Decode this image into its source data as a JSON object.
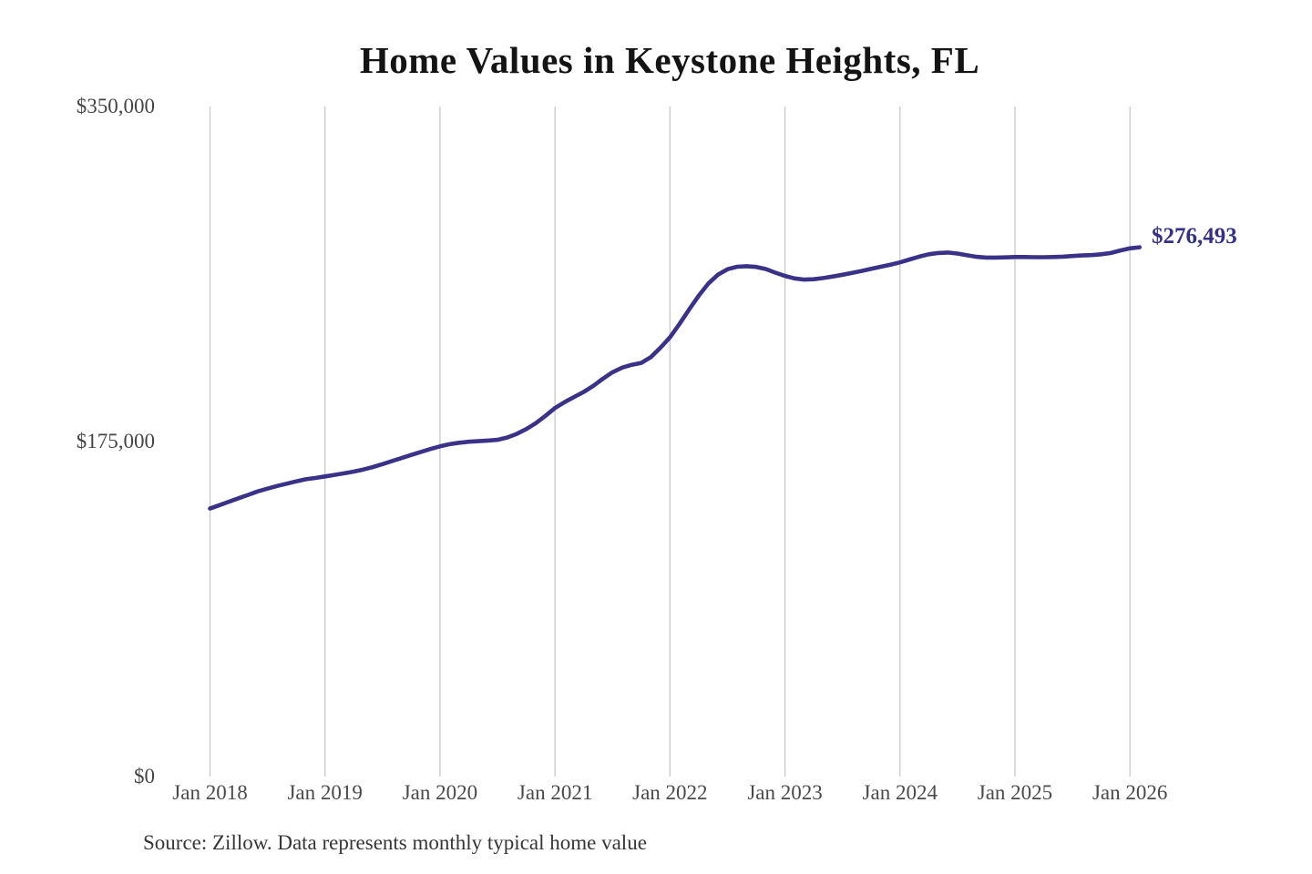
{
  "title": "Home Values in Keystone Heights, FL",
  "annotation": {
    "current_value": "$276,493"
  },
  "footer": {
    "source_note": "Source: Zillow. Data represents monthly typical home value"
  },
  "colors": {
    "line": "#3a3288",
    "accent_label": "#343086",
    "gridline": "#c9c9c9",
    "axis_text": "#4a4a4a",
    "title_text": "#141414"
  },
  "axes": {
    "y_ticks": [
      {
        "label": "$350,000",
        "value": 350000
      },
      {
        "label": "$175,000",
        "value": 175000
      },
      {
        "label": "$0",
        "value": 0
      }
    ],
    "x_tick_labels": [
      "Jan 2018",
      "Jan 2019",
      "Jan 2020",
      "Jan 2021",
      "Jan 2022",
      "Jan 2023",
      "Jan 2024",
      "Jan 2025",
      "Jan 2026"
    ]
  },
  "chart_data": {
    "type": "line",
    "title": "Home Values in Keystone Heights, FL",
    "xlabel": "",
    "ylabel": "",
    "ylim": [
      0,
      350000
    ],
    "y_tick_labels": [
      "$0",
      "$175,000",
      "$350,000"
    ],
    "x_tick_labels": [
      "Jan 2018",
      "Jan 2019",
      "Jan 2020",
      "Jan 2021",
      "Jan 2022",
      "Jan 2023",
      "Jan 2024",
      "Jan 2025",
      "Jan 2026"
    ],
    "grid": "vertical-only",
    "legend": "none",
    "unit": "USD",
    "frequency": "monthly",
    "x_start": "2018-01",
    "x_end": "2026-02",
    "last_point_value": 276493,
    "last_point_label": "$276,493",
    "series": [
      {
        "name": "Typical home value",
        "values": [
          140000,
          141800,
          143600,
          145400,
          147200,
          149000,
          150400,
          151800,
          153000,
          154200,
          155300,
          156000,
          156800,
          157600,
          158400,
          159300,
          160400,
          161700,
          163200,
          164800,
          166400,
          168000,
          169600,
          171100,
          172500,
          173600,
          174400,
          174900,
          175200,
          175500,
          175900,
          177100,
          179000,
          181500,
          184600,
          188400,
          192500,
          195600,
          198300,
          200900,
          204100,
          207800,
          211200,
          213600,
          215100,
          216100,
          219100,
          224000,
          229500,
          236500,
          244000,
          251200,
          257500,
          262100,
          265000,
          266300,
          266600,
          266200,
          265100,
          263200,
          261500,
          260200,
          259600,
          259800,
          260400,
          261200,
          262100,
          263100,
          264100,
          265200,
          266300,
          267400,
          268600,
          270100,
          271600,
          272800,
          273500,
          273700,
          273200,
          272300,
          271500,
          271100,
          271100,
          271200,
          271400,
          271400,
          271300,
          271300,
          271400,
          271600,
          271900,
          272200,
          272400,
          272800,
          273500,
          274800,
          275900,
          276493
        ]
      }
    ]
  }
}
